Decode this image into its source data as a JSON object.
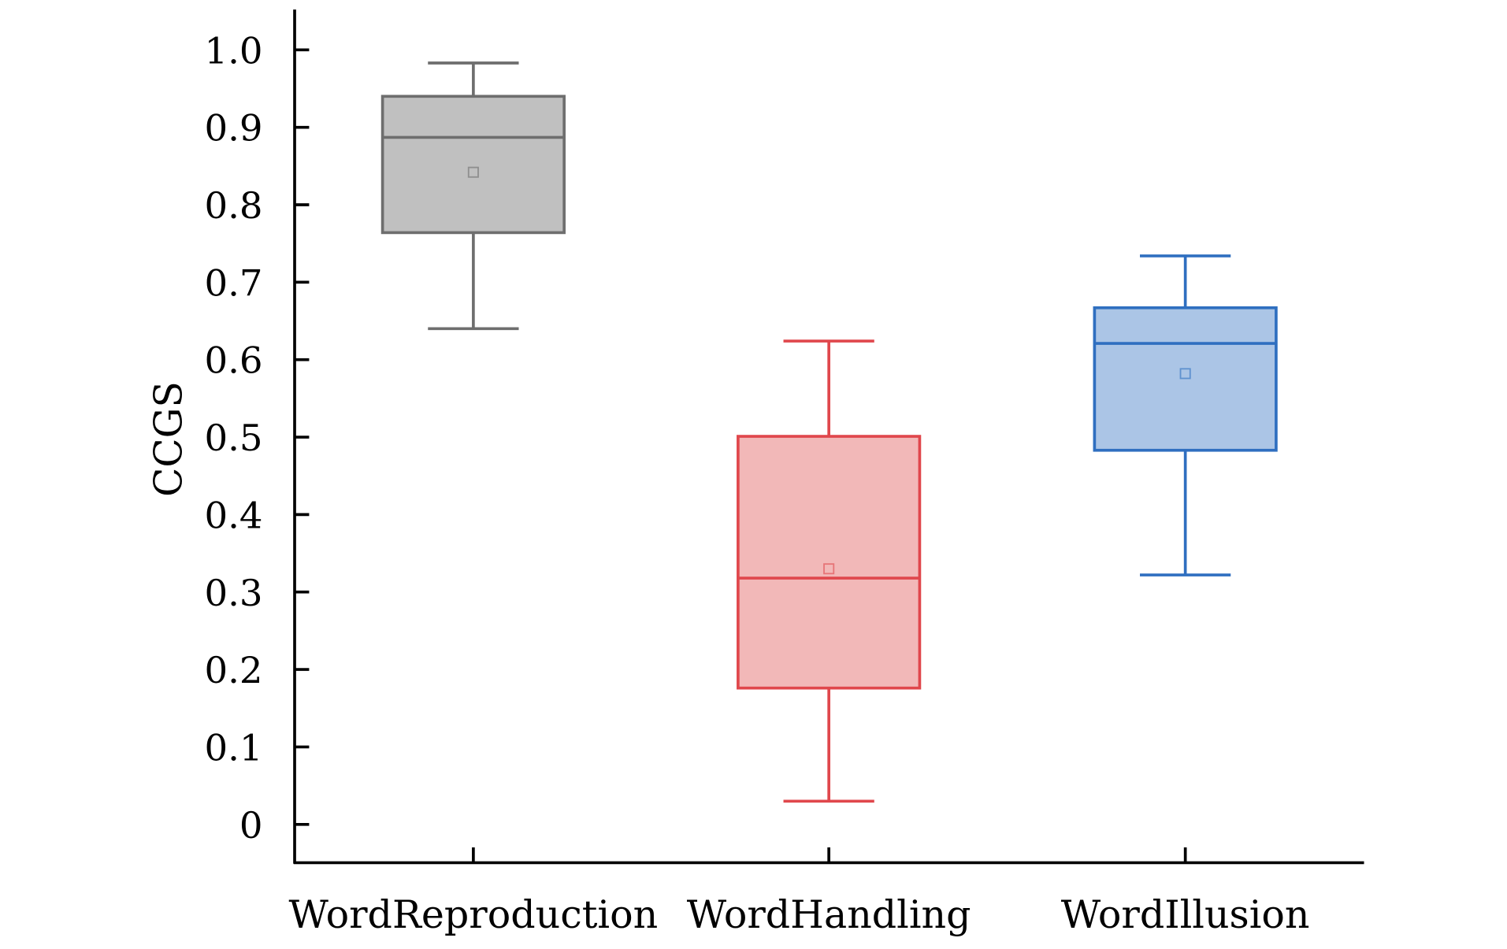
{
  "chart_data": {
    "type": "box",
    "title": "",
    "xlabel": "",
    "ylabel": "CCGS",
    "ylim": [
      0,
      1.0
    ],
    "yticks": [
      "0",
      "0.1",
      "0.2",
      "0.3",
      "0.4",
      "0.5",
      "0.6",
      "0.7",
      "0.8",
      "0.9",
      "1.0"
    ],
    "ytick_values": [
      0,
      0.1,
      0.2,
      0.3,
      0.4,
      0.5,
      0.6,
      0.7,
      0.8,
      0.9,
      1.0
    ],
    "categories": [
      "WordReproduction",
      "WordHandling",
      "WordIllusion"
    ],
    "series": [
      {
        "name": "WordReproduction",
        "min": 0.64,
        "q1": 0.764,
        "median": 0.887,
        "mean": 0.842,
        "q3": 0.94,
        "max": 0.983,
        "fill": "#c0c0c0",
        "stroke": "#6e6e6e"
      },
      {
        "name": "WordHandling",
        "min": 0.03,
        "q1": 0.176,
        "median": 0.318,
        "mean": 0.33,
        "q3": 0.501,
        "max": 0.624,
        "fill": "#f2b8b8",
        "stroke": "#e0474c"
      },
      {
        "name": "WordIllusion",
        "min": 0.322,
        "q1": 0.483,
        "median": 0.621,
        "mean": 0.582,
        "q3": 0.667,
        "max": 0.734,
        "fill": "#abc5e6",
        "stroke": "#2f6fc0"
      }
    ],
    "grid": false,
    "legend": "none"
  }
}
